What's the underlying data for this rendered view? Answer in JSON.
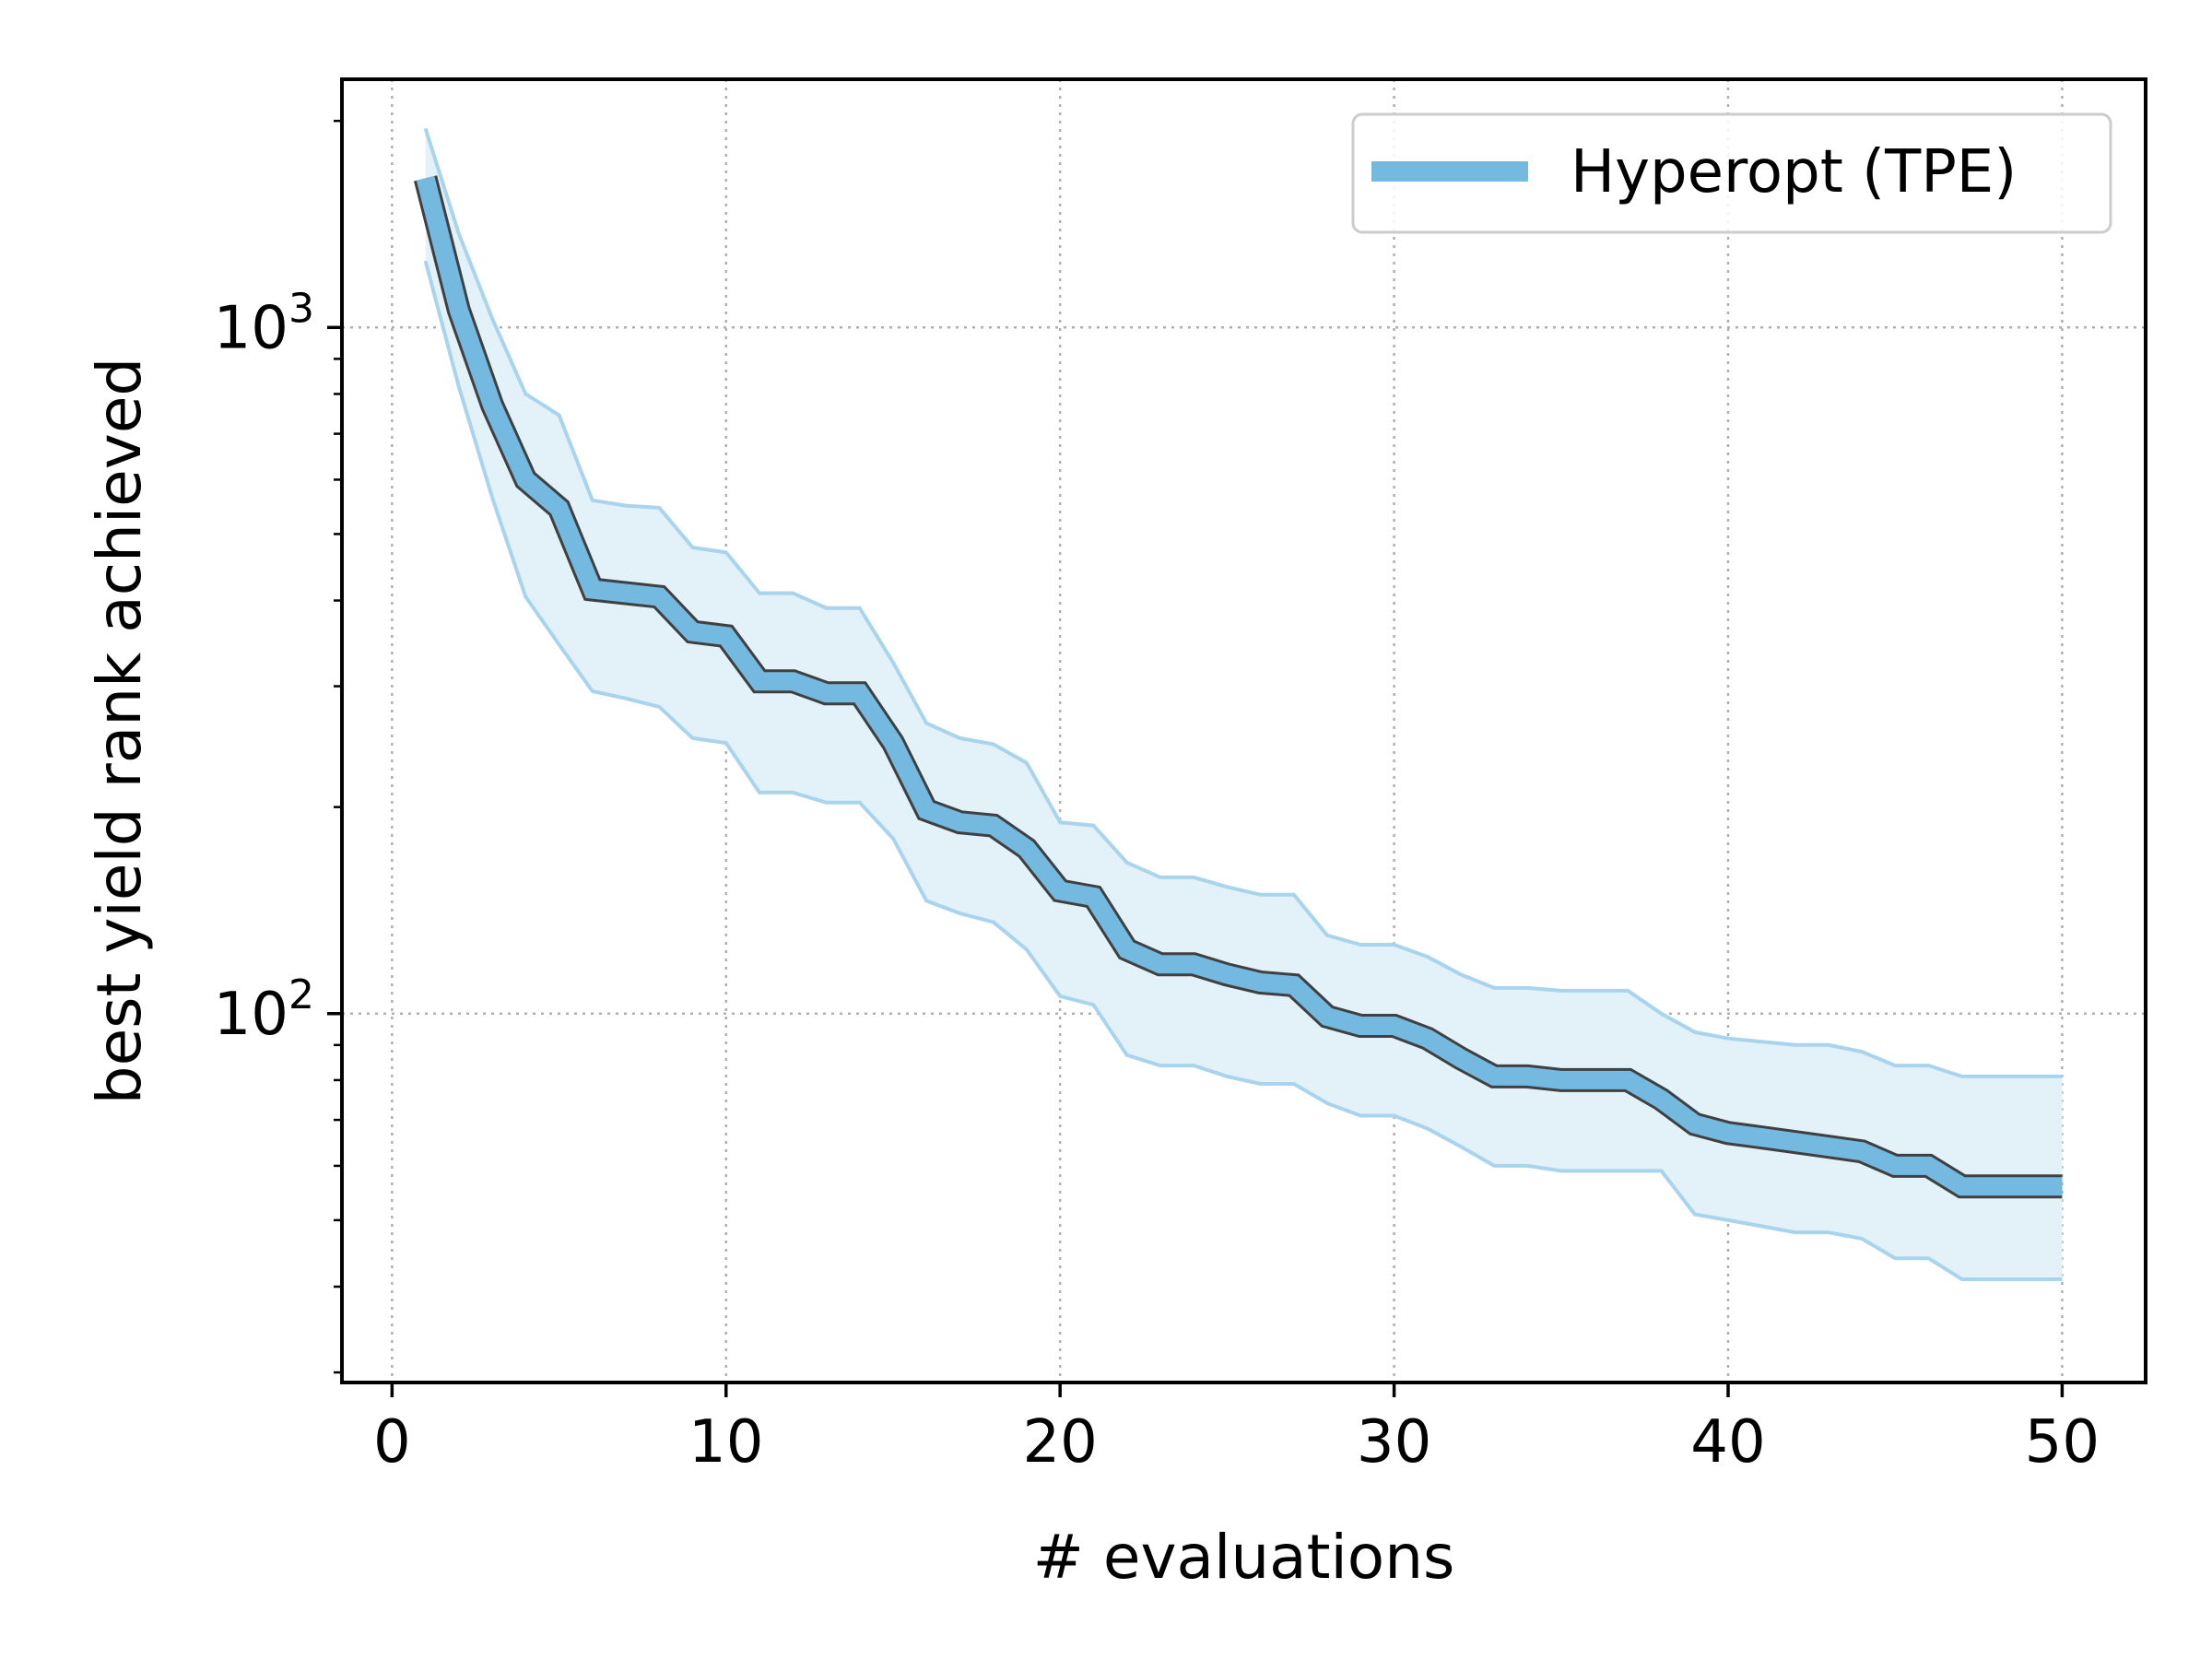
{
  "chart_data": {
    "type": "line",
    "xlabel": "# evaluations",
    "ylabel": "best yield rank achieved",
    "yscale": "log",
    "xlim": [
      -1.5,
      52.5
    ],
    "ylim": [
      29.0,
      2300
    ],
    "x_ticks": [
      0,
      10,
      20,
      30,
      40,
      50
    ],
    "x_tick_labels": [
      "0",
      "10",
      "20",
      "30",
      "40",
      "50"
    ],
    "y_major_ticks": [
      100,
      1000
    ],
    "y_major_tick_labels": [
      {
        "base": "10",
        "exp": "2"
      },
      {
        "base": "10",
        "exp": "3"
      }
    ],
    "y_minor_ticks": [
      30,
      40,
      50,
      60,
      70,
      80,
      90,
      200,
      300,
      400,
      500,
      600,
      700,
      800,
      900,
      2000
    ],
    "grid": true,
    "legend_position": "upper-right",
    "colors": {
      "line": "#74b9e0",
      "band_fill": "#e3f1f9",
      "band_edge": "#a9d4ed",
      "line_edge": "#404040",
      "grid": "#b0b0b0"
    },
    "series": [
      {
        "name": "Hyperopt (TPE)",
        "x": [
          1,
          2,
          3,
          4,
          5,
          6,
          7,
          8,
          9,
          10,
          11,
          12,
          13,
          14,
          15,
          16,
          17,
          18,
          19,
          20,
          21,
          22,
          23,
          24,
          25,
          26,
          27,
          28,
          29,
          30,
          31,
          32,
          33,
          34,
          35,
          36,
          37,
          38,
          39,
          40,
          41,
          42,
          43,
          44,
          45,
          46,
          47,
          48,
          49,
          50
        ],
        "y": [
          1650,
          1060,
          770,
          600,
          545,
          415,
          410,
          405,
          360,
          355,
          305,
          305,
          293,
          293,
          248,
          198,
          190,
          188,
          174,
          151,
          148,
          124,
          118,
          118,
          114,
          111,
          110,
          99,
          96,
          96,
          92,
          86,
          81,
          81,
          80,
          80,
          80,
          75,
          69,
          67,
          66,
          65,
          64,
          63,
          60,
          60,
          56,
          56,
          56,
          56
        ],
        "lower": [
          1250,
          820,
          565,
          405,
          345,
          295,
          288,
          280,
          252,
          248,
          210,
          210,
          203,
          203,
          180,
          146,
          140,
          136,
          124,
          106,
          103,
          87,
          84,
          84,
          81,
          79,
          79,
          74,
          71,
          71,
          68,
          64,
          60,
          60,
          59,
          59,
          59,
          59,
          51,
          50,
          49,
          48,
          48,
          47,
          44,
          44,
          41,
          41,
          41,
          41
        ],
        "upper": [
          1950,
          1370,
          1030,
          800,
          745,
          560,
          550,
          546,
          478,
          470,
          410,
          410,
          390,
          390,
          325,
          265,
          252,
          247,
          232,
          190,
          188,
          166,
          158,
          158,
          153,
          149,
          149,
          130,
          126,
          126,
          121,
          114,
          109,
          109,
          108,
          108,
          108,
          100,
          94,
          92,
          91,
          90,
          90,
          88,
          84,
          84,
          81,
          81,
          81,
          81
        ]
      }
    ]
  }
}
